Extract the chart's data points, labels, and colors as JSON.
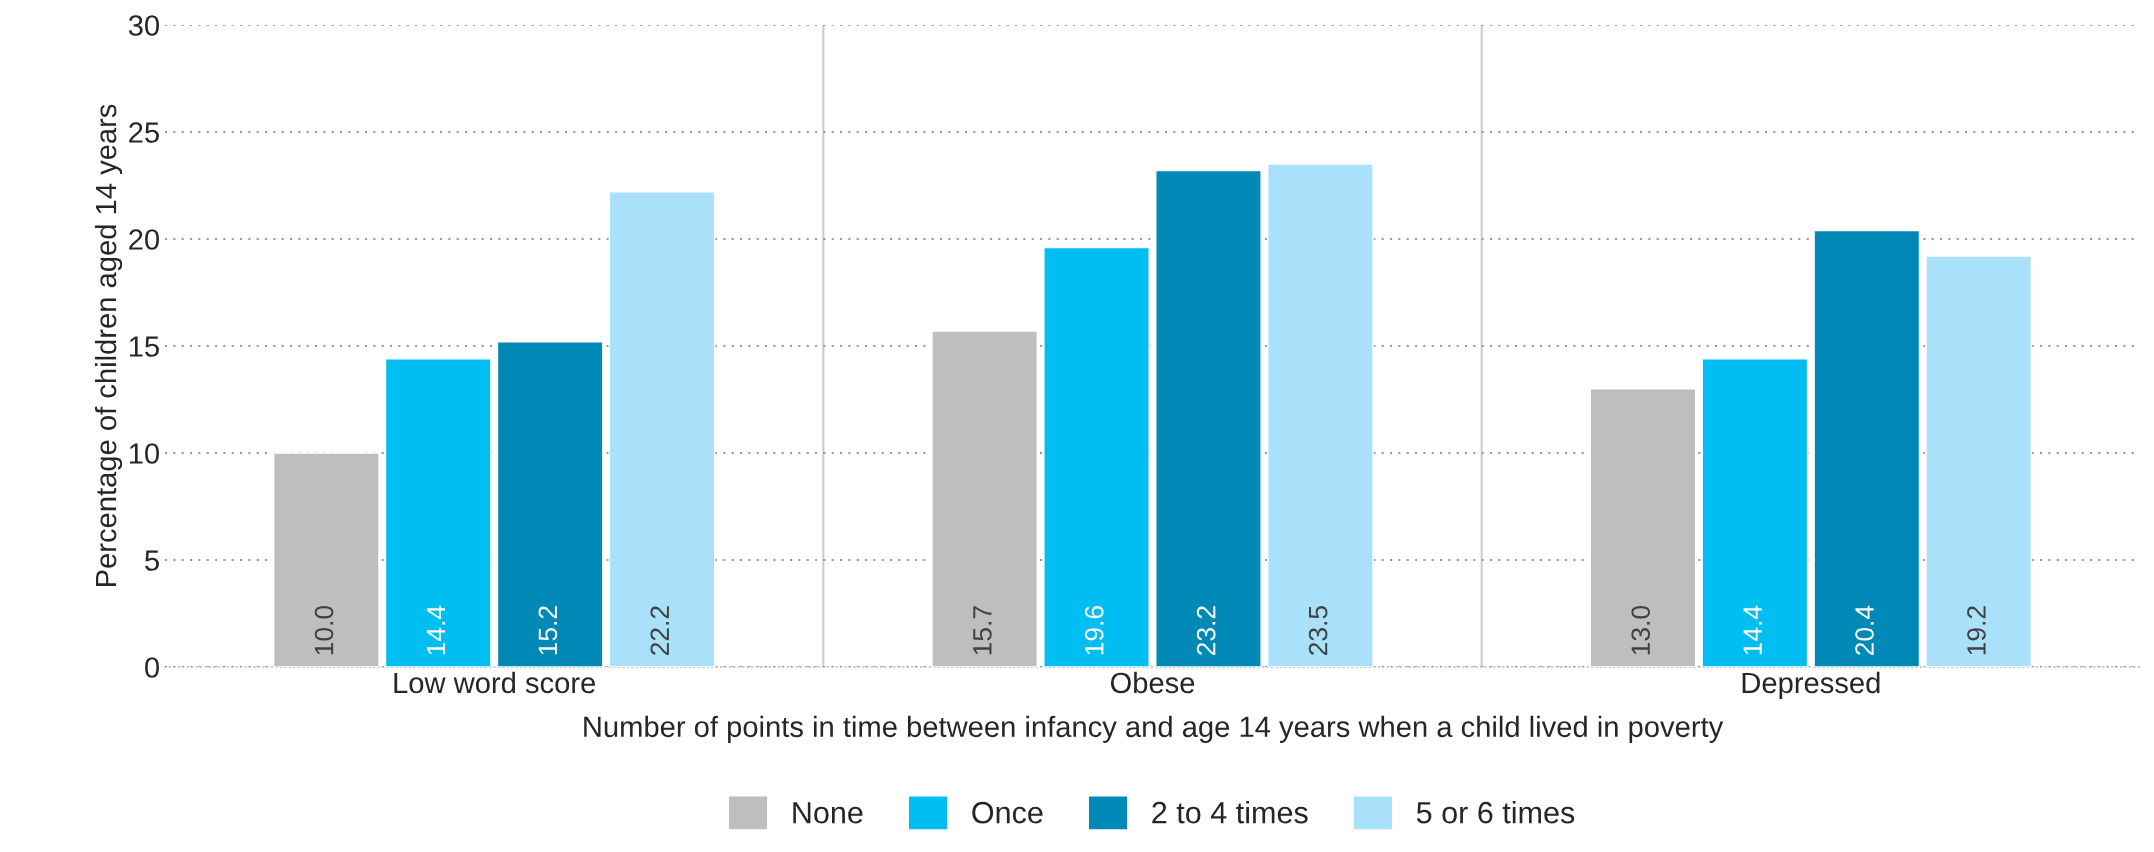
{
  "chart_data": {
    "type": "bar",
    "xlabel": "Number of points in time between infancy and age 14 years when a child lived in poverty",
    "ylabel": "Percentage of children aged 14 years",
    "categories": [
      "Low word score",
      "Obese",
      "Depressed"
    ],
    "series": [
      {
        "name": "None",
        "color": "#bcbec0",
        "values": [
          10.0,
          15.7,
          13.0
        ],
        "value_labels": [
          "10.0",
          "15.7",
          "13.0"
        ]
      },
      {
        "name": "Once",
        "color": "#00bdf2",
        "values": [
          14.4,
          19.6,
          14.4
        ],
        "value_labels": [
          "14.4",
          "19.6",
          "14.4"
        ]
      },
      {
        "name": "2 to 4 times",
        "color": "#0089b6",
        "values": [
          15.2,
          23.2,
          20.4
        ],
        "value_labels": [
          "15.2",
          "23.2",
          "20.4"
        ]
      },
      {
        "name": "5 or 6 times",
        "color": "#a9e1fa",
        "values": [
          22.2,
          23.5,
          19.2
        ],
        "value_labels": [
          "22.2",
          "23.5",
          "19.2"
        ]
      }
    ],
    "ylim": [
      0,
      30
    ],
    "yticks": [
      0,
      5,
      10,
      15,
      20,
      25,
      30
    ],
    "grid": true,
    "legend": "bottom"
  }
}
